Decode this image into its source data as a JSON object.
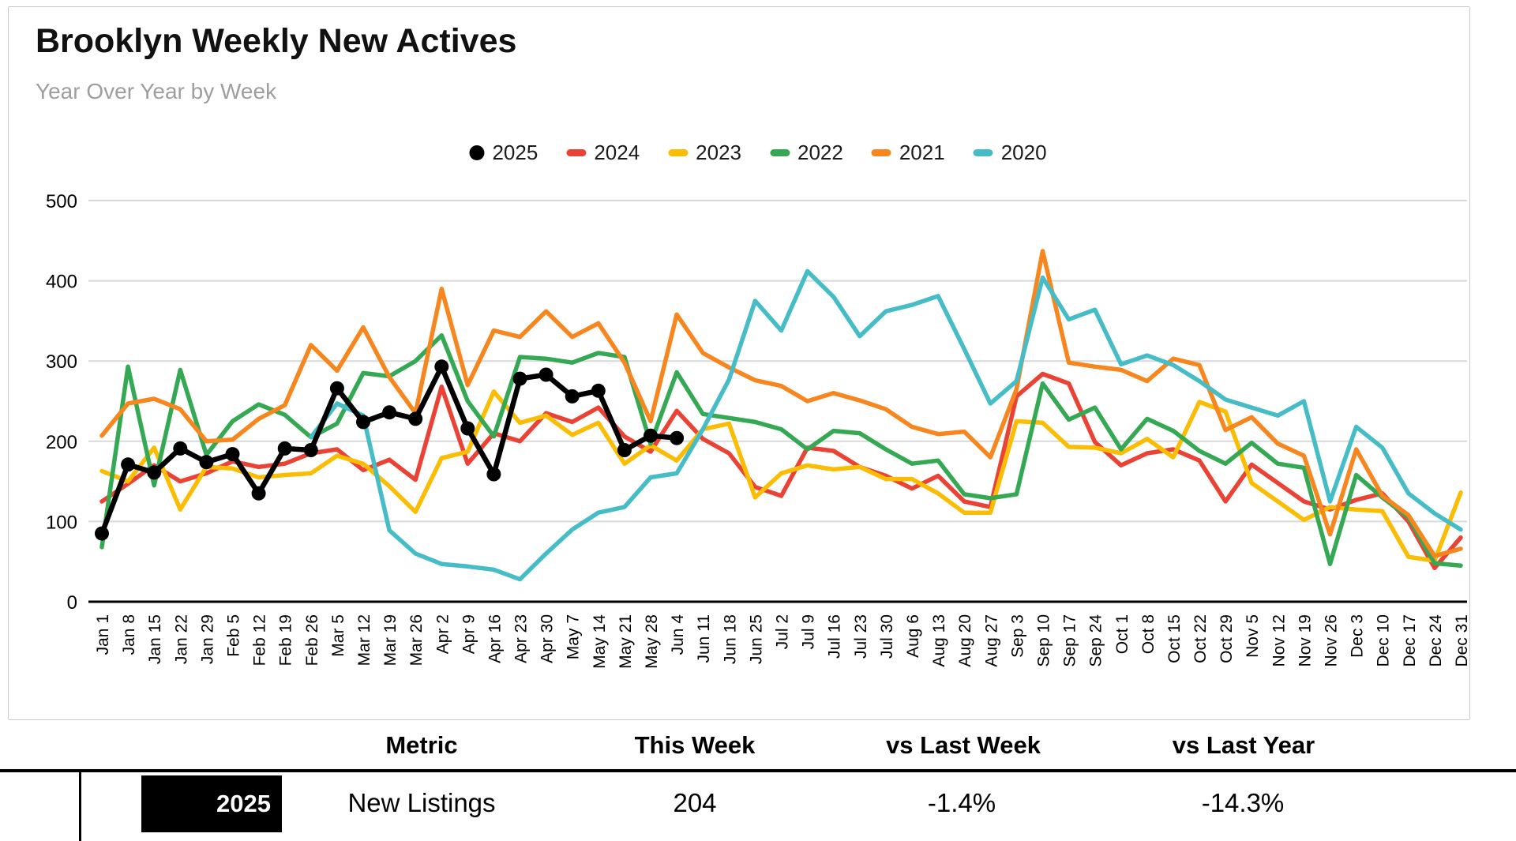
{
  "page": {
    "title": "Brooklyn Weekly New Actives",
    "subtitle": "Year Over Year by Week"
  },
  "colors": {
    "y2025": "#000000",
    "y2024": "#EA4335",
    "y2023": "#FBBC04",
    "y2022": "#34A853",
    "y2021": "#F6861D",
    "y2020": "#46BDC6",
    "gridline": "#d9d9d9",
    "axis": "#000000"
  },
  "legend": {
    "items": [
      {
        "label": "2025",
        "color": "#000000",
        "marker": "circle"
      },
      {
        "label": "2024",
        "color": "#EA4335",
        "marker": "dash"
      },
      {
        "label": "2023",
        "color": "#FBBC04",
        "marker": "dash"
      },
      {
        "label": "2022",
        "color": "#34A853",
        "marker": "dash"
      },
      {
        "label": "2021",
        "color": "#F6861D",
        "marker": "dash"
      },
      {
        "label": "2020",
        "color": "#46BDC6",
        "marker": "dash"
      }
    ]
  },
  "chart_data": {
    "type": "line",
    "title": "Brooklyn Weekly New Actives",
    "subtitle": "Year Over Year by Week",
    "xlabel": "",
    "ylabel": "",
    "ylim": [
      0,
      500
    ],
    "y_ticks": [
      0,
      100,
      200,
      300,
      400,
      500
    ],
    "grid": true,
    "legend_position": "top",
    "x_labels": [
      "Jan 1",
      "Jan 8",
      "Jan 15",
      "Jan 22",
      "Jan 29",
      "Feb 5",
      "Feb 12",
      "Feb 19",
      "Feb 26",
      "Mar 5",
      "Mar 12",
      "Mar 19",
      "Mar 26",
      "Apr 2",
      "Apr 9",
      "Apr 16",
      "Apr 23",
      "Apr 30",
      "May 7",
      "May 14",
      "May 21",
      "May 28",
      "Jun 4",
      "Jun 11",
      "Jun 18",
      "Jun 25",
      "Jul 2",
      "Jul 9",
      "Jul 16",
      "Jul 23",
      "Jul 30",
      "Aug 6",
      "Aug 13",
      "Aug 20",
      "Aug 27",
      "Sep 3",
      "Sep 10",
      "Sep 17",
      "Sep 24",
      "Oct 1",
      "Oct 8",
      "Oct 15",
      "Oct 22",
      "Oct 29",
      "Nov 5",
      "Nov 12",
      "Nov 19",
      "Nov 26",
      "Dec 3",
      "Dec 10",
      "Dec 17",
      "Dec 24",
      "Dec 31"
    ],
    "series": [
      {
        "name": "2024",
        "color": "#EA4335",
        "marker": false,
        "values": [
          125,
          147,
          170,
          150,
          160,
          175,
          168,
          172,
          185,
          190,
          164,
          177,
          152,
          268,
          172,
          210,
          200,
          235,
          224,
          242,
          206,
          187,
          238,
          203,
          185,
          143,
          132,
          192,
          188,
          168,
          157,
          141,
          157,
          125,
          118,
          256,
          284,
          272,
          199,
          170,
          185,
          190,
          176,
          125,
          171,
          148,
          125,
          115,
          127,
          135,
          100,
          42,
          80
        ]
      },
      {
        "name": "2023",
        "color": "#FBBC04",
        "marker": false,
        "values": [
          163,
          150,
          192,
          115,
          168,
          166,
          155,
          158,
          160,
          182,
          172,
          144,
          112,
          179,
          187,
          262,
          223,
          232,
          208,
          223,
          172,
          195,
          176,
          215,
          222,
          130,
          160,
          170,
          165,
          168,
          153,
          153,
          135,
          111,
          111,
          225,
          223,
          193,
          192,
          185,
          203,
          180,
          249,
          237,
          148,
          125,
          102,
          118,
          115,
          113,
          56,
          51,
          136
        ]
      },
      {
        "name": "2022",
        "color": "#34A853",
        "marker": false,
        "values": [
          68,
          293,
          145,
          289,
          183,
          225,
          246,
          233,
          205,
          222,
          285,
          281,
          300,
          332,
          250,
          206,
          305,
          303,
          298,
          310,
          305,
          197,
          286,
          234,
          229,
          224,
          215,
          190,
          213,
          210,
          190,
          172,
          176,
          134,
          129,
          134,
          272,
          227,
          242,
          190,
          228,
          213,
          188,
          172,
          198,
          172,
          167,
          47,
          158,
          130,
          105,
          48,
          45
        ]
      },
      {
        "name": "2021",
        "color": "#F6861D",
        "marker": false,
        "values": [
          207,
          247,
          253,
          240,
          200,
          202,
          228,
          245,
          320,
          288,
          342,
          280,
          235,
          390,
          270,
          338,
          330,
          362,
          330,
          347,
          298,
          225,
          358,
          310,
          292,
          276,
          269,
          250,
          260,
          251,
          240,
          218,
          209,
          212,
          180,
          265,
          437,
          298,
          293,
          289,
          275,
          303,
          295,
          214,
          230,
          197,
          182,
          84,
          190,
          132,
          108,
          57,
          66
        ]
      },
      {
        "name": "2020",
        "color": "#46BDC6",
        "marker": false,
        "values": [
          null,
          null,
          null,
          null,
          null,
          null,
          null,
          null,
          205,
          247,
          232,
          89,
          60,
          47,
          44,
          40,
          28,
          60,
          90,
          111,
          118,
          155,
          160,
          215,
          277,
          375,
          338,
          412,
          380,
          331,
          362,
          370,
          381,
          315,
          247,
          275,
          404,
          352,
          364,
          296,
          307,
          295,
          275,
          252,
          242,
          232,
          250,
          125,
          218,
          192,
          135,
          110,
          90
        ]
      },
      {
        "name": "2025",
        "color": "#000000",
        "marker": true,
        "values": [
          85,
          171,
          161,
          191,
          174,
          184,
          135,
          191,
          189,
          266,
          224,
          236,
          228,
          293,
          216,
          159,
          278,
          283,
          256,
          263,
          189,
          207,
          204,
          null,
          null,
          null,
          null,
          null,
          null,
          null,
          null,
          null,
          null,
          null,
          null,
          null,
          null,
          null,
          null,
          null,
          null,
          null,
          null,
          null,
          null,
          null,
          null,
          null,
          null,
          null,
          null,
          null,
          null
        ]
      }
    ]
  },
  "table": {
    "headers": {
      "metric": "Metric",
      "this_week": "This Week",
      "vs_last_week": "vs Last Week",
      "vs_last_year": "vs Last Year"
    },
    "row": {
      "year": "2025",
      "metric": "New Listings",
      "this_week": "204",
      "vs_last_week": "-1.4%",
      "vs_last_year": "-14.3%"
    }
  }
}
